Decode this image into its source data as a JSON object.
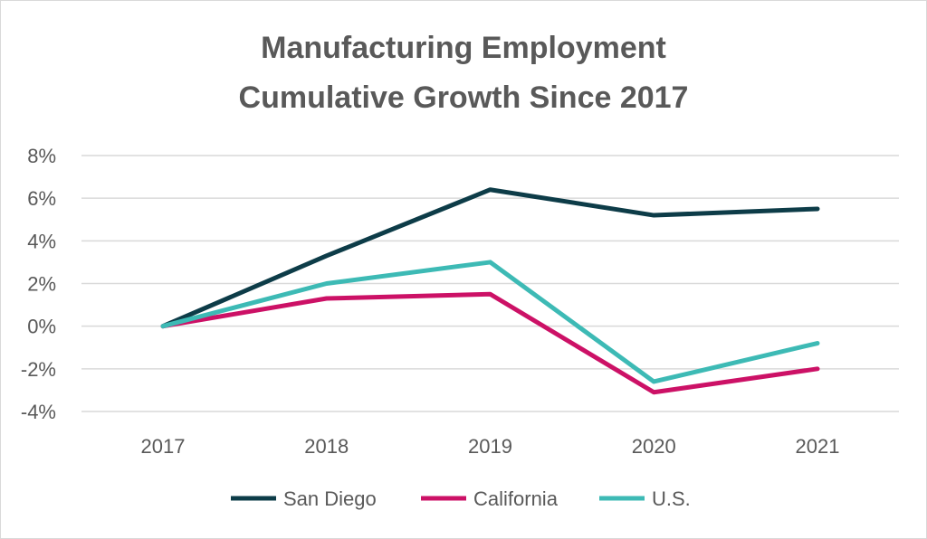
{
  "chart_data": {
    "type": "line",
    "title_line1": "Manufacturing Employment",
    "title_line2": "Cumulative Growth Since 2017",
    "categories": [
      "2017",
      "2018",
      "2019",
      "2020",
      "2021"
    ],
    "ylim": [
      -4,
      8
    ],
    "yticks": [
      -4,
      -2,
      0,
      2,
      4,
      6,
      8
    ],
    "ytick_labels": [
      "-4%",
      "-2%",
      "0%",
      "2%",
      "4%",
      "6%",
      "8%"
    ],
    "grid": true,
    "legend_position": "bottom",
    "series": [
      {
        "name": "San Diego",
        "color": "#0d3c48",
        "values": [
          0.0,
          3.3,
          6.4,
          5.2,
          5.5
        ]
      },
      {
        "name": "California",
        "color": "#cc1166",
        "values": [
          0.0,
          1.3,
          1.5,
          -3.1,
          -2.0
        ]
      },
      {
        "name": "U.S.",
        "color": "#3dbab5",
        "values": [
          0.0,
          2.0,
          3.0,
          -2.6,
          -0.8
        ]
      }
    ]
  }
}
